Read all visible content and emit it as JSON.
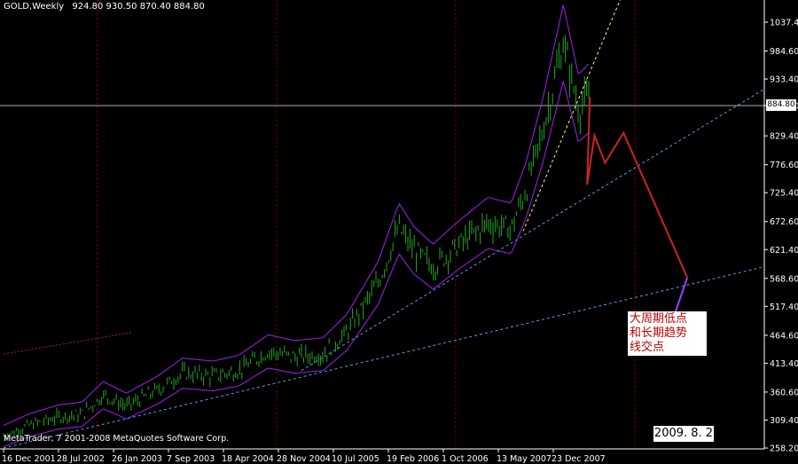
{
  "header": {
    "symbol": "GOLD,Weekly",
    "ohlc": "924.80 930.50 870.40 884.80"
  },
  "copyright": "MetaTrader, 7 2001-2008 MetaQuotes Software Corp.",
  "current_price_label": "884.80",
  "annotation_lines": [
    "大周期低点",
    "和长期趋势",
    "线交点"
  ],
  "date_box": "2009. 8. 2",
  "colors": {
    "background": "#000000",
    "candles": "#22a822",
    "bands": "#a020f0",
    "trendline": "#4fa3e0",
    "projection": "#cc2222",
    "forecast_end": "#9a40ff",
    "separator": "#800000"
  },
  "chart_data": {
    "type": "line",
    "title": "GOLD,Weekly",
    "xlabel": "",
    "ylabel": "",
    "x_tick_labels": [
      "16 Dec 2001",
      "28 Jul 2002",
      "26 Jan 2003",
      "7 Sep 2003",
      "18 Apr 2004",
      "28 Nov 2004",
      "10 Jul 2005",
      "19 Feb 2006",
      "1 Oct 2006",
      "13 May 2007",
      "23 Dec 2007"
    ],
    "y_tick_labels": [
      "1037.40",
      "984.60",
      "933.40",
      "884.80",
      "829.40",
      "776.60",
      "725.40",
      "672.60",
      "621.40",
      "568.60",
      "517.40",
      "464.60",
      "413.40",
      "360.60",
      "309.40",
      "258.20"
    ],
    "ylim": [
      258.2,
      1037.4
    ],
    "current_price": 884.8,
    "grid": false,
    "series": [
      {
        "x": [
          "2001-12-16",
          "2002-04-01",
          "2002-07-28",
          "2002-11-01",
          "2003-01-26",
          "2003-05-01",
          "2003-09-07",
          "2003-12-15",
          "2004-04-18",
          "2004-08-01",
          "2004-11-28",
          "2005-03-15",
          "2005-07-10",
          "2005-10-15",
          "2006-02-19",
          "2006-05-15",
          "2006-07-15",
          "2006-10-01",
          "2007-01-15",
          "2007-05-13",
          "2007-08-15",
          "2007-10-15",
          "2007-12-23",
          "2008-03-15",
          "2008-05-15",
          "2008-07-01"
        ],
        "values": [
          280,
          300,
          315,
          320,
          355,
          335,
          365,
          395,
          390,
          400,
          435,
          425,
          430,
          470,
          560,
          660,
          620,
          590,
          630,
          670,
          660,
          730,
          840,
          1000,
          880,
          900
        ]
      }
    ],
    "projection": {
      "x": [
        "2008-06-20",
        "2008-07-20",
        "2008-09-01",
        "2008-11-15",
        "2009-08-02"
      ],
      "values": [
        740,
        830,
        780,
        835,
        570
      ]
    }
  }
}
